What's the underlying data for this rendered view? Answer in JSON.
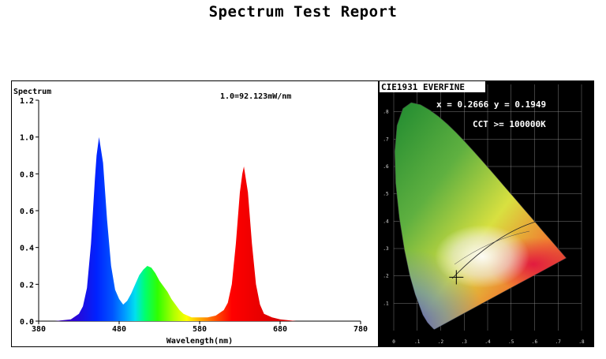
{
  "report": {
    "title": "Spectrum Test Report"
  },
  "chart_data": [
    {
      "type": "area",
      "title": "",
      "ylabel": "Spectrum",
      "xlabel": "Wavelength(nm)",
      "scale_note": "1.0=92.123mW/nm",
      "xlim": [
        380,
        780
      ],
      "ylim": [
        0,
        1.2
      ],
      "xticks": [
        "380",
        "480",
        "580",
        "680",
        "780"
      ],
      "yticks": [
        "0.0",
        "0.2",
        "0.4",
        "0.6",
        "0.8",
        "1.0",
        "1.2"
      ],
      "grid": false,
      "fill": "spectral-gradient",
      "series": [
        {
          "x": [
            380,
            400,
            420,
            430,
            435,
            440,
            445,
            450,
            452,
            455,
            460,
            465,
            470,
            475,
            480,
            485,
            490,
            495,
            500,
            505,
            510,
            515,
            520,
            525,
            530,
            535,
            540,
            545,
            550,
            555,
            560,
            565,
            570,
            575,
            580,
            590,
            600,
            610,
            615,
            620,
            625,
            630,
            633,
            635,
            640,
            645,
            650,
            655,
            660,
            670,
            680,
            700,
            720,
            780
          ],
          "values": [
            0,
            0,
            0.01,
            0.04,
            0.08,
            0.18,
            0.42,
            0.78,
            0.9,
            1.0,
            0.86,
            0.55,
            0.3,
            0.17,
            0.12,
            0.09,
            0.11,
            0.15,
            0.2,
            0.25,
            0.28,
            0.3,
            0.29,
            0.26,
            0.22,
            0.19,
            0.16,
            0.12,
            0.09,
            0.06,
            0.04,
            0.03,
            0.02,
            0.02,
            0.02,
            0.02,
            0.03,
            0.06,
            0.1,
            0.2,
            0.42,
            0.7,
            0.8,
            0.84,
            0.7,
            0.42,
            0.2,
            0.09,
            0.04,
            0.02,
            0.01,
            0,
            0,
            0
          ]
        }
      ]
    },
    {
      "type": "scatter",
      "title": "CIE1931 EVERFINE",
      "xlim": [
        0,
        0.8
      ],
      "ylim": [
        0,
        0.9
      ],
      "xticks": [
        "0",
        ".1",
        ".2",
        ".3",
        ".4",
        ".5",
        ".6",
        ".7",
        ".8"
      ],
      "yticks": [
        ".1",
        ".2",
        ".3",
        ".4",
        ".5",
        ".6",
        ".7",
        ".8"
      ],
      "readout": {
        "coords": "x = 0.2666 y = 0.1949",
        "cct": "CCT >= 100000K"
      },
      "series": [
        {
          "x": [
            0.2666
          ],
          "values": [
            0.1949
          ]
        }
      ]
    }
  ]
}
